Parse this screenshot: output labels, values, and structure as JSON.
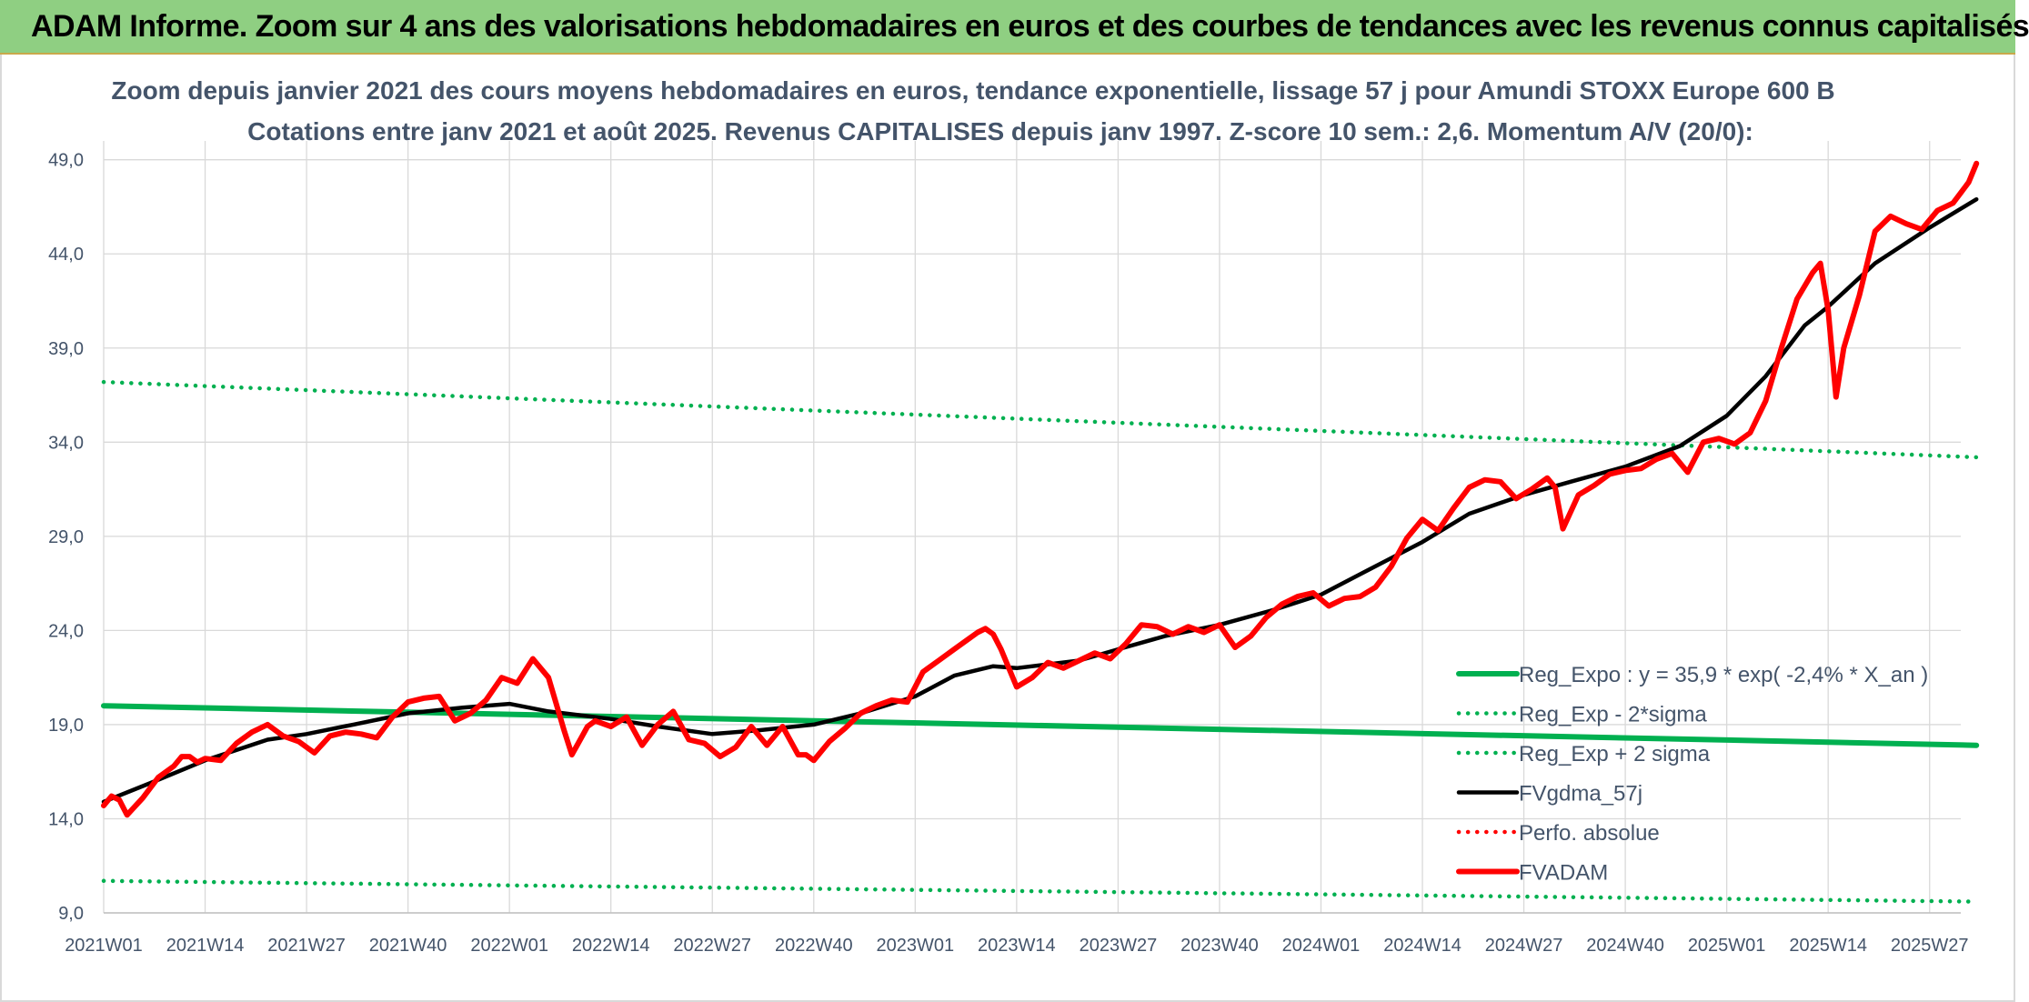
{
  "banner": {
    "title": "ADAM Informe. Zoom sur 4 ans des valorisations hebdomadaires en euros et des courbes de tendances avec les revenus connus capitalisés"
  },
  "colors": {
    "banner_bg": "#8fcf82",
    "green": "#00b050",
    "black": "#000000",
    "red": "#ff0000",
    "grid": "#d9d9d9",
    "text": "#44546a"
  },
  "chart_data": {
    "type": "line",
    "title": "Zoom depuis janvier 2021 des cours moyens hebdomadaires en euros, tendance exponentielle, lissage 57 j pour Amundi STOXX Europe 600 B",
    "subtitle": "Cotations entre janv 2021 et août 2025. Revenus CAPITALISES depuis janv 1997. Z-score 10 sem.: 2,6. Momentum A/V (20/0):",
    "xlabel": "",
    "ylabel": "",
    "ylim": [
      9,
      50
    ],
    "yticks": [
      "9,0",
      "14,0",
      "19,0",
      "24,0",
      "29,0",
      "34,0",
      "39,0",
      "44,0",
      "49,0"
    ],
    "xticks": [
      "2021W01",
      "2021W14",
      "2021W27",
      "2021W40",
      "2022W01",
      "2022W14",
      "2022W27",
      "2022W40",
      "2023W01",
      "2023W14",
      "2023W27",
      "2023W40",
      "2024W01",
      "2024W14",
      "2024W27",
      "2024W40",
      "2025W01",
      "2025W14",
      "2025W27"
    ],
    "grid": true,
    "legend_position": "bottom-right",
    "series": [
      {
        "name": "Reg_Expo : y = 35,9 * exp( -2,4% *  X_an )",
        "color": "#00b050",
        "style": "solid",
        "x": [
          "2021W01",
          "2025W33"
        ],
        "values": [
          20.0,
          17.9
        ]
      },
      {
        "name": "Reg_Exp - 2*sigma",
        "color": "#00b050",
        "style": "dotted",
        "x": [
          "2021W01",
          "2025W33"
        ],
        "values": [
          10.7,
          9.6
        ]
      },
      {
        "name": "Reg_Exp + 2 sigma",
        "color": "#00b050",
        "style": "dotted",
        "x": [
          "2021W01",
          "2025W33"
        ],
        "values": [
          37.2,
          33.2
        ]
      },
      {
        "name": "FVgdma_57j",
        "color": "#000000",
        "style": "solid",
        "x": [
          "2021W01",
          "2021W07",
          "2021W14",
          "2021W22",
          "2021W27",
          "2021W33",
          "2021W40",
          "2021W47",
          "2022W01",
          "2022W06",
          "2022W14",
          "2022W20",
          "2022W27",
          "2022W33",
          "2022W40",
          "2022W46",
          "2023W01",
          "2023W06",
          "2023W11",
          "2023W14",
          "2023W22",
          "2023W27",
          "2023W33",
          "2023W40",
          "2023W47",
          "2024W01",
          "2024W07",
          "2024W14",
          "2024W20",
          "2024W27",
          "2024W33",
          "2024W40",
          "2024W47",
          "2025W01",
          "2025W06",
          "2025W11",
          "2025W14",
          "2025W20",
          "2025W27",
          "2025W33"
        ],
        "values": [
          14.9,
          15.9,
          17.1,
          18.2,
          18.5,
          19.0,
          19.6,
          19.9,
          20.1,
          19.7,
          19.3,
          18.9,
          18.5,
          18.7,
          19.0,
          19.6,
          20.5,
          21.6,
          22.1,
          22.0,
          22.4,
          23.0,
          23.7,
          24.3,
          25.1,
          25.9,
          27.2,
          28.7,
          30.2,
          31.2,
          31.9,
          32.7,
          33.8,
          35.4,
          37.5,
          40.2,
          41.2,
          43.5,
          45.4,
          46.9
        ]
      },
      {
        "name": "Perfo. absolue",
        "color": "#ff0000",
        "style": "dotted",
        "x": [],
        "values": []
      },
      {
        "name": "FVADAM",
        "color": "#ff0000",
        "style": "solid",
        "x": [
          "2021W01",
          "2021W02",
          "2021W03",
          "2021W04",
          "2021W06",
          "2021W08",
          "2021W10",
          "2021W11",
          "2021W12",
          "2021W13",
          "2021W14",
          "2021W16",
          "2021W18",
          "2021W20",
          "2021W22",
          "2021W24",
          "2021W26",
          "2021W28",
          "2021W30",
          "2021W32",
          "2021W34",
          "2021W36",
          "2021W38",
          "2021W40",
          "2021W42",
          "2021W44",
          "2021W46",
          "2021W48",
          "2021W50",
          "2021W52",
          "2022W02",
          "2022W04",
          "2022W06",
          "2022W08",
          "2022W09",
          "2022W11",
          "2022W12",
          "2022W14",
          "2022W16",
          "2022W18",
          "2022W20",
          "2022W22",
          "2022W24",
          "2022W26",
          "2022W28",
          "2022W30",
          "2022W32",
          "2022W34",
          "2022W36",
          "2022W38",
          "2022W39",
          "2022W40",
          "2022W42",
          "2022W44",
          "2022W46",
          "2022W48",
          "2022W50",
          "2022W52",
          "2023W02",
          "2023W04",
          "2023W06",
          "2023W08",
          "2023W09",
          "2023W10",
          "2023W11",
          "2023W12",
          "2023W14",
          "2023W16",
          "2023W18",
          "2023W20",
          "2023W22",
          "2023W24",
          "2023W26",
          "2023W28",
          "2023W30",
          "2023W32",
          "2023W34",
          "2023W36",
          "2023W38",
          "2023W40",
          "2023W42",
          "2023W44",
          "2023W46",
          "2023W48",
          "2023W50",
          "2023W52",
          "2024W02",
          "2024W04",
          "2024W06",
          "2024W08",
          "2024W10",
          "2024W12",
          "2024W14",
          "2024W16",
          "2024W18",
          "2024W20",
          "2024W22",
          "2024W24",
          "2024W26",
          "2024W28",
          "2024W30",
          "2024W31",
          "2024W32",
          "2024W34",
          "2024W36",
          "2024W38",
          "2024W40",
          "2024W42",
          "2024W44",
          "2024W46",
          "2024W48",
          "2024W50",
          "2024W52",
          "2025W02",
          "2025W04",
          "2025W06",
          "2025W08",
          "2025W10",
          "2025W12",
          "2025W13",
          "2025W14",
          "2025W15",
          "2025W16",
          "2025W18",
          "2025W20",
          "2025W22",
          "2025W24",
          "2025W26",
          "2025W28",
          "2025W30",
          "2025W32",
          "2025W33"
        ],
        "values": [
          14.7,
          15.2,
          15.0,
          14.2,
          15.1,
          16.2,
          16.8,
          17.3,
          17.3,
          17.0,
          17.2,
          17.1,
          18.0,
          18.6,
          19.0,
          18.4,
          18.1,
          17.5,
          18.4,
          18.6,
          18.5,
          18.3,
          19.4,
          20.2,
          20.4,
          20.5,
          19.2,
          19.6,
          20.3,
          21.5,
          21.2,
          22.5,
          21.5,
          18.7,
          17.4,
          18.9,
          19.2,
          18.9,
          19.4,
          17.9,
          19.0,
          19.7,
          18.2,
          18.0,
          17.3,
          17.8,
          18.9,
          17.9,
          18.9,
          17.4,
          17.4,
          17.1,
          18.1,
          18.8,
          19.6,
          20.0,
          20.3,
          20.2,
          21.8,
          22.4,
          23.0,
          23.6,
          23.9,
          24.1,
          23.8,
          23.0,
          21.0,
          21.5,
          22.3,
          22.0,
          22.4,
          22.8,
          22.5,
          23.3,
          24.3,
          24.2,
          23.8,
          24.2,
          23.9,
          24.3,
          23.1,
          23.7,
          24.7,
          25.4,
          25.8,
          26.0,
          25.3,
          25.7,
          25.8,
          26.3,
          27.4,
          28.9,
          29.9,
          29.3,
          30.5,
          31.6,
          32.0,
          31.9,
          31.0,
          31.5,
          32.1,
          31.6,
          29.4,
          31.2,
          31.7,
          32.3,
          32.5,
          32.6,
          33.1,
          33.4,
          32.4,
          34.0,
          34.2,
          33.9,
          34.5,
          36.2,
          39.0,
          41.6,
          43.0,
          43.5,
          41.0,
          36.4,
          39.0,
          41.8,
          45.2,
          46.0,
          45.6,
          45.3,
          46.3,
          46.7,
          47.8,
          48.8
        ]
      }
    ]
  }
}
